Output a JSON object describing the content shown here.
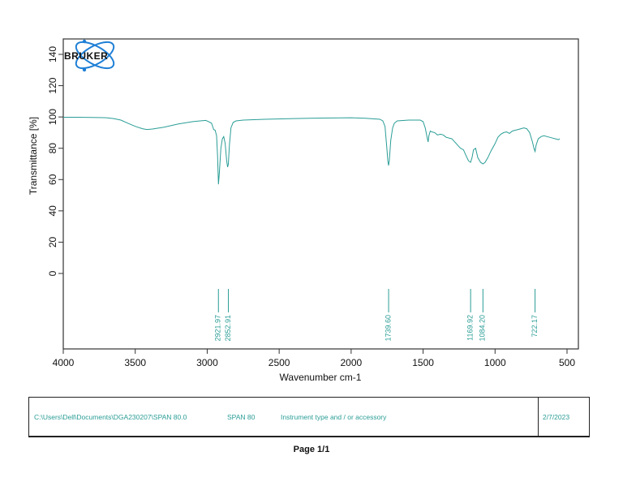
{
  "chart_data": {
    "type": "line",
    "title": "",
    "xlabel": "Wavenumber cm-1",
    "ylabel": "Transmittance [%]",
    "xlim": [
      4000,
      420
    ],
    "ylim": [
      -48,
      150
    ],
    "x_ticks": [
      4000,
      3500,
      3000,
      2500,
      2000,
      1500,
      1000,
      500
    ],
    "y_ticks": [
      0,
      20,
      40,
      60,
      80,
      100,
      120,
      140
    ],
    "grid": false,
    "legend": null,
    "line_color": "#2a9d96",
    "series": [
      {
        "name": "SPAN 80",
        "x": [
          4000,
          3900,
          3800,
          3700,
          3650,
          3600,
          3550,
          3500,
          3450,
          3420,
          3380,
          3300,
          3200,
          3100,
          3050,
          3010,
          2990,
          2970,
          2955,
          2945,
          2935,
          2928,
          2922,
          2915,
          2905,
          2895,
          2885,
          2875,
          2865,
          2858,
          2853,
          2846,
          2835,
          2820,
          2800,
          2750,
          2600,
          2400,
          2200,
          2000,
          1900,
          1800,
          1780,
          1765,
          1752,
          1745,
          1740,
          1735,
          1725,
          1712,
          1700,
          1680,
          1600,
          1520,
          1500,
          1485,
          1470,
          1465,
          1460,
          1450,
          1440,
          1420,
          1400,
          1380,
          1360,
          1340,
          1300,
          1260,
          1240,
          1220,
          1200,
          1185,
          1170,
          1160,
          1150,
          1135,
          1120,
          1100,
          1084,
          1070,
          1050,
          1030,
          1000,
          980,
          960,
          940,
          920,
          900,
          880,
          860,
          840,
          820,
          800,
          780,
          760,
          740,
          730,
          722,
          715,
          700,
          680,
          660,
          640,
          620,
          600,
          580,
          560,
          550
        ],
        "y": [
          99.8,
          99.8,
          99.7,
          99.5,
          99,
          98,
          96,
          94,
          92.5,
          92,
          92.3,
          93.5,
          95.5,
          97,
          97.5,
          97.8,
          97,
          96,
          92,
          91.5,
          88,
          75,
          57,
          65,
          80,
          86,
          87.5,
          83,
          72,
          68,
          70,
          82,
          93,
          96.5,
          97.5,
          98,
          98.5,
          99,
          99.3,
          99.5,
          99.2,
          98.5,
          97.5,
          94,
          80,
          72,
          69,
          72,
          85,
          93,
          96,
          97.5,
          98,
          98,
          97,
          93,
          86,
          84,
          88,
          91,
          90.5,
          90,
          88.5,
          89,
          88.5,
          87,
          86,
          82,
          80,
          79,
          75,
          72,
          71,
          74,
          79,
          80,
          74,
          71,
          70,
          71,
          74,
          78,
          83,
          87,
          89,
          90,
          90.5,
          89.5,
          91,
          91.5,
          92,
          92.5,
          93,
          92.5,
          90,
          84,
          80,
          78,
          82,
          86,
          87.5,
          88,
          87.5,
          87,
          86.5,
          86,
          85.5,
          86
        ],
        "peak_labels": [
          2921.97,
          2852.91,
          1739.6,
          1169.92,
          1084.2,
          722.17
        ]
      }
    ],
    "peak_markers": [
      {
        "label": "2921.97",
        "wavenumber": 2921.97
      },
      {
        "label": "2852.91",
        "wavenumber": 2852.91
      },
      {
        "label": "1739.60",
        "wavenumber": 1739.6
      },
      {
        "label": "1169.92",
        "wavenumber": 1169.92
      },
      {
        "label": "1084.20",
        "wavenumber": 1084.2
      },
      {
        "label": "722.17",
        "wavenumber": 722.17
      }
    ]
  },
  "logo": {
    "text": "BRUKER"
  },
  "footer": {
    "path": "C:\\Users\\Dell\\Documents\\DGA230207\\SPAN 80.0",
    "sample": "SPAN 80",
    "instrument": "Instrument type and / or accessory",
    "date": "2/7/2023"
  },
  "page": {
    "label": "Page 1/1"
  }
}
